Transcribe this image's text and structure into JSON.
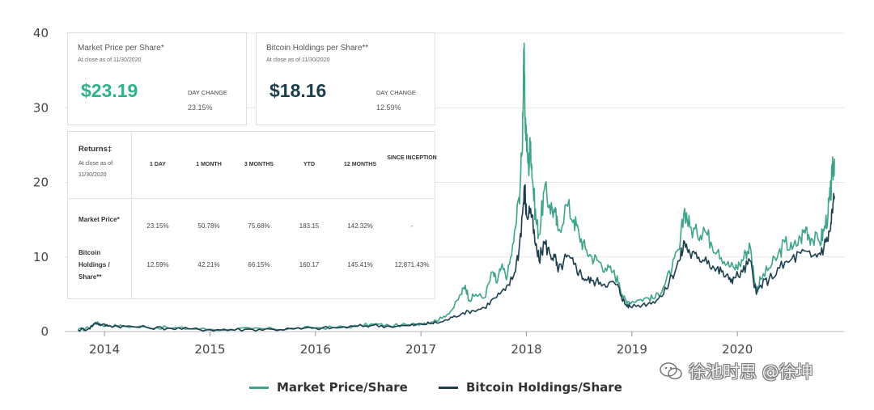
{
  "chart_data": {
    "type": "line",
    "xlabel": "",
    "ylabel": "",
    "ylim": [
      0,
      40
    ],
    "xlim": [
      2013.7,
      2020.95
    ],
    "yticks": [
      0,
      10,
      20,
      30,
      40
    ],
    "xticks": [
      2014,
      2015,
      2016,
      2017,
      2018,
      2019,
      2020
    ],
    "grid": "horizontal",
    "legend_position": "bottom",
    "series": [
      {
        "name": "Market Price/Share",
        "color": "#3aa58a",
        "points": [
          [
            2013.75,
            0.2
          ],
          [
            2013.85,
            0.5
          ],
          [
            2013.92,
            1.2
          ],
          [
            2013.97,
            0.9
          ],
          [
            2014.05,
            0.8
          ],
          [
            2014.2,
            0.7
          ],
          [
            2014.4,
            0.6
          ],
          [
            2014.6,
            0.5
          ],
          [
            2014.8,
            0.4
          ],
          [
            2015.0,
            0.3
          ],
          [
            2015.2,
            0.3
          ],
          [
            2015.4,
            0.35
          ],
          [
            2015.6,
            0.35
          ],
          [
            2015.8,
            0.4
          ],
          [
            2016.0,
            0.5
          ],
          [
            2016.2,
            0.55
          ],
          [
            2016.4,
            0.75
          ],
          [
            2016.55,
            1.0
          ],
          [
            2016.7,
            0.8
          ],
          [
            2016.9,
            0.9
          ],
          [
            2017.0,
            1.1
          ],
          [
            2017.1,
            1.3
          ],
          [
            2017.2,
            1.8
          ],
          [
            2017.3,
            3.0
          ],
          [
            2017.38,
            5.0
          ],
          [
            2017.42,
            6.2
          ],
          [
            2017.46,
            4.2
          ],
          [
            2017.52,
            5.0
          ],
          [
            2017.6,
            4.5
          ],
          [
            2017.68,
            8.0
          ],
          [
            2017.72,
            6.5
          ],
          [
            2017.76,
            8.5
          ],
          [
            2017.82,
            7.5
          ],
          [
            2017.88,
            12.0
          ],
          [
            2017.93,
            18.0
          ],
          [
            2017.96,
            24.0
          ],
          [
            2017.975,
            38.0
          ],
          [
            2017.985,
            30.0
          ],
          [
            2018.0,
            26.0
          ],
          [
            2018.02,
            22.0
          ],
          [
            2018.04,
            25.5
          ],
          [
            2018.06,
            20.0
          ],
          [
            2018.09,
            15.0
          ],
          [
            2018.12,
            13.0
          ],
          [
            2018.17,
            19.0
          ],
          [
            2018.22,
            17.0
          ],
          [
            2018.27,
            16.0
          ],
          [
            2018.3,
            13.5
          ],
          [
            2018.38,
            17.0
          ],
          [
            2018.45,
            15.0
          ],
          [
            2018.5,
            13.0
          ],
          [
            2018.56,
            11.0
          ],
          [
            2018.62,
            10.0
          ],
          [
            2018.68,
            9.5
          ],
          [
            2018.75,
            8.5
          ],
          [
            2018.82,
            8.0
          ],
          [
            2018.88,
            6.5
          ],
          [
            2018.92,
            4.5
          ],
          [
            2018.96,
            4.0
          ],
          [
            2019.05,
            4.2
          ],
          [
            2019.15,
            4.5
          ],
          [
            2019.22,
            4.5
          ],
          [
            2019.3,
            6.0
          ],
          [
            2019.38,
            8.5
          ],
          [
            2019.45,
            11.0
          ],
          [
            2019.5,
            16.5
          ],
          [
            2019.55,
            14.0
          ],
          [
            2019.62,
            13.0
          ],
          [
            2019.68,
            14.0
          ],
          [
            2019.75,
            12.0
          ],
          [
            2019.82,
            11.0
          ],
          [
            2019.9,
            9.0
          ],
          [
            2019.97,
            8.5
          ],
          [
            2020.02,
            9.0
          ],
          [
            2020.08,
            10.5
          ],
          [
            2020.12,
            11.5
          ],
          [
            2020.18,
            5.5
          ],
          [
            2020.22,
            7.0
          ],
          [
            2020.3,
            8.5
          ],
          [
            2020.38,
            10.0
          ],
          [
            2020.45,
            12.0
          ],
          [
            2020.52,
            11.0
          ],
          [
            2020.6,
            12.5
          ],
          [
            2020.65,
            14.0
          ],
          [
            2020.7,
            12.5
          ],
          [
            2020.78,
            12.0
          ],
          [
            2020.82,
            13.5
          ],
          [
            2020.86,
            16.0
          ],
          [
            2020.88,
            18.0
          ],
          [
            2020.9,
            21.0
          ],
          [
            2020.92,
            23.19
          ]
        ]
      },
      {
        "name": "Bitcoin Holdings/Share",
        "color": "#1b3e4d",
        "points": [
          [
            2013.75,
            0.2
          ],
          [
            2013.85,
            0.4
          ],
          [
            2013.92,
            1.2
          ],
          [
            2013.97,
            0.9
          ],
          [
            2014.05,
            0.8
          ],
          [
            2014.2,
            0.7
          ],
          [
            2014.4,
            0.55
          ],
          [
            2014.6,
            0.45
          ],
          [
            2014.8,
            0.35
          ],
          [
            2015.0,
            0.25
          ],
          [
            2015.2,
            0.25
          ],
          [
            2015.4,
            0.3
          ],
          [
            2015.6,
            0.3
          ],
          [
            2015.8,
            0.35
          ],
          [
            2016.0,
            0.45
          ],
          [
            2016.2,
            0.5
          ],
          [
            2016.4,
            0.7
          ],
          [
            2016.55,
            0.85
          ],
          [
            2016.7,
            0.7
          ],
          [
            2016.9,
            0.8
          ],
          [
            2017.0,
            1.0
          ],
          [
            2017.1,
            1.1
          ],
          [
            2017.2,
            1.3
          ],
          [
            2017.3,
            1.9
          ],
          [
            2017.4,
            2.5
          ],
          [
            2017.5,
            2.8
          ],
          [
            2017.6,
            3.2
          ],
          [
            2017.7,
            4.5
          ],
          [
            2017.8,
            5.5
          ],
          [
            2017.88,
            7.5
          ],
          [
            2017.93,
            11.0
          ],
          [
            2017.97,
            17.0
          ],
          [
            2017.985,
            19.0
          ],
          [
            2018.0,
            15.5
          ],
          [
            2018.04,
            16.5
          ],
          [
            2018.08,
            12.0
          ],
          [
            2018.12,
            9.5
          ],
          [
            2018.17,
            12.0
          ],
          [
            2018.22,
            10.5
          ],
          [
            2018.27,
            10.0
          ],
          [
            2018.3,
            8.0
          ],
          [
            2018.38,
            10.0
          ],
          [
            2018.45,
            9.0
          ],
          [
            2018.5,
            8.0
          ],
          [
            2018.56,
            7.0
          ],
          [
            2018.62,
            6.8
          ],
          [
            2018.7,
            6.6
          ],
          [
            2018.78,
            6.5
          ],
          [
            2018.86,
            6.3
          ],
          [
            2018.9,
            4.8
          ],
          [
            2018.94,
            3.6
          ],
          [
            2018.98,
            3.4
          ],
          [
            2019.1,
            3.6
          ],
          [
            2019.2,
            4.0
          ],
          [
            2019.3,
            5.0
          ],
          [
            2019.38,
            7.5
          ],
          [
            2019.45,
            9.5
          ],
          [
            2019.5,
            12.0
          ],
          [
            2019.55,
            10.5
          ],
          [
            2019.62,
            9.8
          ],
          [
            2019.7,
            10.0
          ],
          [
            2019.78,
            8.5
          ],
          [
            2019.85,
            8.0
          ],
          [
            2019.92,
            7.0
          ],
          [
            2019.97,
            7.2
          ],
          [
            2020.05,
            8.0
          ],
          [
            2020.12,
            9.5
          ],
          [
            2020.18,
            5.0
          ],
          [
            2020.22,
            6.2
          ],
          [
            2020.3,
            7.0
          ],
          [
            2020.4,
            8.5
          ],
          [
            2020.5,
            9.5
          ],
          [
            2020.6,
            10.5
          ],
          [
            2020.7,
            10.0
          ],
          [
            2020.78,
            10.5
          ],
          [
            2020.84,
            12.0
          ],
          [
            2020.88,
            13.5
          ],
          [
            2020.9,
            16.0
          ],
          [
            2020.92,
            18.16
          ]
        ]
      }
    ]
  },
  "cards": [
    {
      "title": "Market Price per Share*",
      "sub": "At close as of 11/30/2020",
      "price": "$23.19",
      "price_color": "#2bb38c",
      "day_change_label": "DAY CHANGE",
      "day_change_value": "23.15%"
    },
    {
      "title": "Bitcoin Holdings per Share**",
      "sub": "At close as of 11/30/2020",
      "price": "$18.16",
      "price_color": "#1b3e4d",
      "day_change_label": "DAY CHANGE",
      "day_change_value": "12.59%"
    }
  ],
  "returns": {
    "title": "Returns‡",
    "sub": "At close as of 11/30/2020",
    "columns": [
      "1 DAY",
      "1 MONTH",
      "3 MONTHS",
      "YTD",
      "12 MONTHS",
      "SINCE INCEPTION"
    ],
    "rows": [
      {
        "label": "Market Price*",
        "values": [
          "23.15%",
          "50.78%",
          "75.68%",
          "183.15",
          "142.32%",
          "-"
        ]
      },
      {
        "label": "Bitcoin Holdings / Share**",
        "values": [
          "12.59%",
          "42.21%",
          "66.15%",
          "160.17",
          "145.41%",
          "12,871.43%"
        ]
      }
    ]
  },
  "legend": [
    "Market Price/Share",
    "Bitcoin Holdings/Share"
  ],
  "watermark": "徐池时思 @徐坤"
}
